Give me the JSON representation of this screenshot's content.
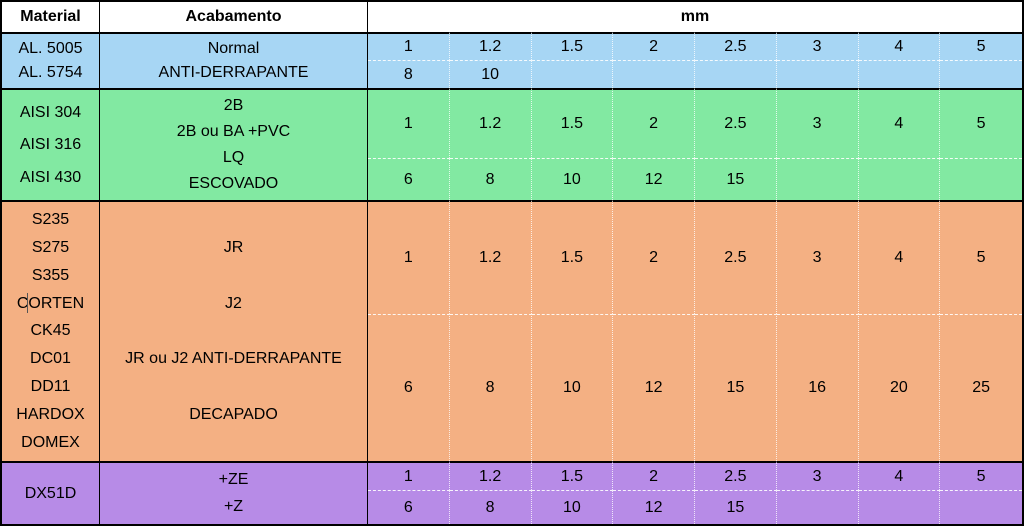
{
  "table": {
    "headers": {
      "material": "Material",
      "acabamento": "Acabamento",
      "mm": "mm"
    }
  },
  "colors": {
    "aluminium_section": "#A7D6F4",
    "stainless_section": "#82E9A2",
    "carbon_steel_section": "#F4B083",
    "galvanized_section": "#B78BE7",
    "border": "#000000",
    "header_bg": "#FFFFFF",
    "text": "#000000"
  },
  "sections": [
    {
      "name": "aluminium",
      "materials": [
        "AL. 5005",
        "AL. 5754"
      ],
      "finishes": [
        "Normal",
        "ANTI-DERRAPANTE"
      ],
      "thickness_row1": [
        "1",
        "1.2",
        "1.5",
        "2",
        "2.5",
        "3",
        "4",
        "5"
      ],
      "thickness_row2": [
        "8",
        "10",
        "",
        "",
        "",
        "",
        "",
        ""
      ]
    },
    {
      "name": "stainless-steel",
      "materials": [
        "AISI 304",
        "AISI 316",
        "AISI 430"
      ],
      "finishes": [
        "2B",
        "2B ou BA +PVC",
        "LQ",
        "ESCOVADO"
      ],
      "thickness_row1": [
        "1",
        "1.2",
        "1.5",
        "2",
        "2.5",
        "3",
        "4",
        "5"
      ],
      "thickness_row2": [
        "6",
        "8",
        "10",
        "12",
        "15",
        "",
        "",
        ""
      ]
    },
    {
      "name": "carbon-steel",
      "materials": [
        "S235",
        "S275",
        "S355",
        "CORTEN",
        "CK45",
        "DC01",
        "DD11",
        "HARDOX",
        "DOMEX"
      ],
      "finishes": [
        "JR",
        "J2",
        "JR ou J2 ANTI-DERRAPANTE",
        "DECAPADO"
      ],
      "thickness_row1": [
        "1",
        "1.2",
        "1.5",
        "2",
        "2.5",
        "3",
        "4",
        "5"
      ],
      "thickness_row2": [
        "6",
        "8",
        "10",
        "12",
        "15",
        "16",
        "20",
        "25"
      ]
    },
    {
      "name": "galvanized",
      "materials": [
        "DX51D"
      ],
      "finishes": [
        "+ZE",
        "+Z"
      ],
      "thickness_row1": [
        "1",
        "1.2",
        "1.5",
        "2",
        "2.5",
        "3",
        "4",
        "5"
      ],
      "thickness_row2": [
        "6",
        "8",
        "10",
        "12",
        "15",
        "",
        "",
        ""
      ]
    }
  ]
}
